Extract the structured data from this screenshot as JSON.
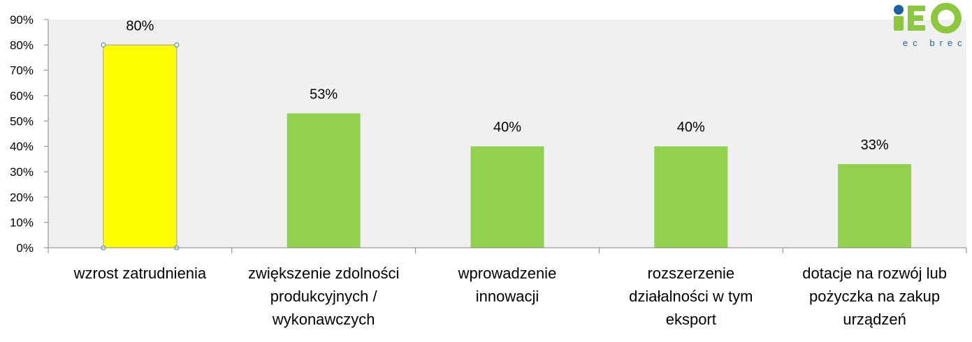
{
  "chart_data": {
    "type": "bar",
    "categories": [
      [
        "wzrost zatrudnienia"
      ],
      [
        "zwiększenie zdolności",
        "produkcyjnych /",
        "wykonawczych"
      ],
      [
        "wprowadzenie",
        "innowacji"
      ],
      [
        "rozszerzenie",
        "działalności w tym",
        "eksport"
      ],
      [
        "dotacje na rozwój lub",
        "pożyczka na zakup",
        "urządzeń"
      ]
    ],
    "values": [
      80,
      53,
      40,
      40,
      33
    ],
    "data_labels": [
      "80%",
      "53%",
      "40%",
      "40%",
      "33%"
    ],
    "ylim": [
      0,
      90
    ],
    "yticks": [
      "0%",
      "10%",
      "20%",
      "30%",
      "40%",
      "50%",
      "60%",
      "70%",
      "80%",
      "90%"
    ],
    "grid": false,
    "highlighted_index": 0,
    "colors": {
      "bar": "#92d050",
      "highlight": "#ffff00",
      "plot_bg": "#f0f0f0",
      "axis": "#868686"
    }
  },
  "logo": {
    "text": "ec brec",
    "colors": {
      "green": "#8dc63f",
      "blue": "#1f5fa0"
    }
  }
}
